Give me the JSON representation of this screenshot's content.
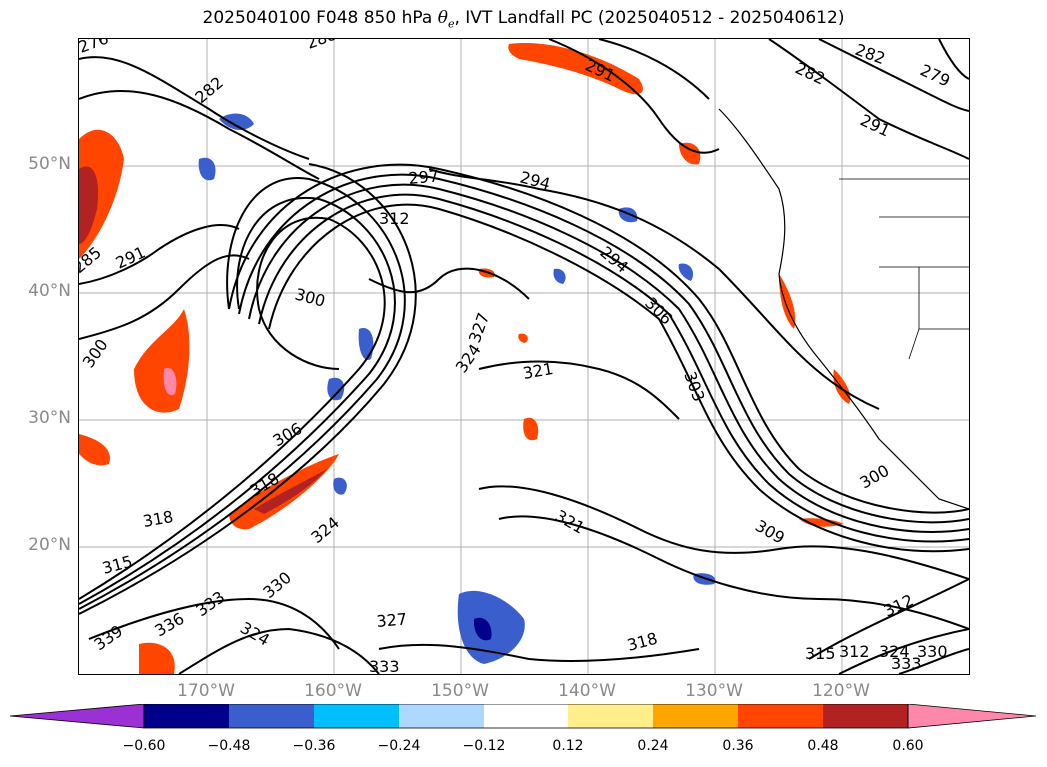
{
  "title": {
    "prefix": "2025040100 F048 850 hPa ",
    "theta": "θ",
    "theta_sub": "e",
    "suffix": ", IVT Landfall PC (2025040512 - 2025040612)"
  },
  "axes": {
    "lat_labels": [
      "50°N",
      "40°N",
      "30°N",
      "20°N"
    ],
    "lon_labels": [
      "170°W",
      "160°W",
      "150°W",
      "140°W",
      "130°W",
      "120°W"
    ]
  },
  "contour_labels": [
    "276",
    "282",
    "288",
    "282",
    "279",
    "291",
    "282",
    "294",
    "297",
    "312",
    "294",
    "291",
    "285",
    "291",
    "300",
    "300",
    "306",
    "300",
    "324",
    "327",
    "321",
    "303",
    "306",
    "309",
    "318",
    "318",
    "315",
    "321",
    "324",
    "330",
    "333",
    "336",
    "339",
    "324",
    "327",
    "333",
    "318",
    "312",
    "315",
    "312",
    "324",
    "333",
    "330",
    "300"
  ],
  "colorbar": {
    "ticks": [
      "−0.60",
      "−0.48",
      "−0.36",
      "−0.24",
      "−0.12",
      "0.12",
      "0.24",
      "0.36",
      "0.48",
      "0.60"
    ],
    "colors": [
      "#9b30d4",
      "#00008b",
      "#3a5fcd",
      "#00bfff",
      "#add8ff",
      "#ffffff",
      "#ffee8a",
      "#ffa500",
      "#ff4500",
      "#b22222",
      "#ff88aa"
    ]
  },
  "chart_data": {
    "type": "heatmap",
    "title": "2025040100 F048 850 hPa θe, IVT Landfall PC (2025040512 - 2025040612)",
    "projection": "lat-lon",
    "lon_range": [
      "180°W",
      "110°W"
    ],
    "lat_range": [
      "10°N",
      "60°N"
    ],
    "contour_field": "850 hPa θe",
    "fill_field": "IVT Landfall PC",
    "colorbar_levels": [
      -0.6,
      -0.48,
      -0.36,
      -0.24,
      -0.12,
      0.12,
      0.24,
      0.36,
      0.48,
      0.6
    ],
    "extend": "both",
    "grid": true
  }
}
